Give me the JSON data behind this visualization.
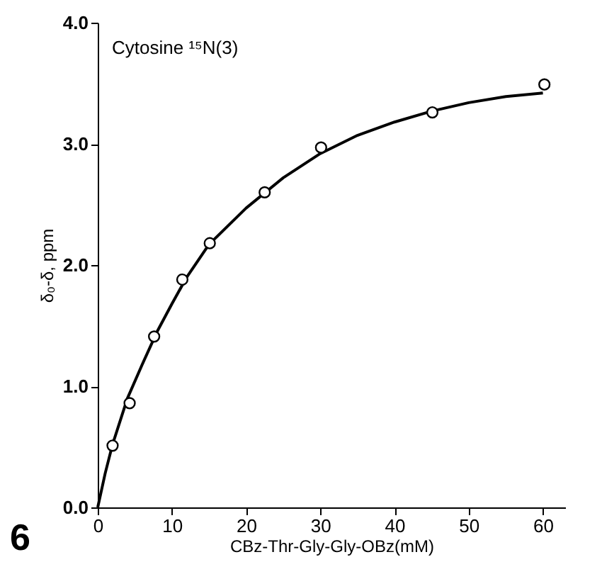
{
  "chart_data": {
    "type": "scatter",
    "xlabel": "CBz-Thr-Gly-Gly-OBz(mM)",
    "ylabel": "δ₀-δ, ppm",
    "annotations": [
      "Cytosine ¹⁵N(3)",
      "6"
    ],
    "xlim": [
      0,
      63
    ],
    "xticks": [
      0,
      10,
      20,
      30,
      40,
      50,
      60
    ],
    "ylim": [
      0,
      4.0
    ],
    "yticks": [
      {
        "value": 0,
        "label": "0.0"
      },
      {
        "value": 1,
        "label": "1.0"
      },
      {
        "value": 2,
        "label": "2.0"
      },
      {
        "value": 3,
        "label": "3.0"
      },
      {
        "value": 4,
        "label": "4.0"
      }
    ],
    "grid": false,
    "series": [
      {
        "type": "scatter",
        "color": "#000000",
        "marker": "circle",
        "x": [
          2.0,
          4.3,
          7.6,
          11.4,
          15.1,
          22.5,
          30.1,
          45.1,
          60.2
        ],
        "values": [
          0.51,
          0.86,
          1.41,
          1.88,
          2.18,
          2.6,
          2.97,
          3.26,
          3.49
        ]
      },
      {
        "type": "line",
        "color": "#000000",
        "line_style": "solid",
        "x": [
          0,
          1,
          2,
          4,
          6,
          8,
          10,
          12,
          15,
          20,
          25,
          30,
          35,
          40,
          45,
          50,
          55,
          60
        ],
        "values": [
          0,
          0.28,
          0.52,
          0.9,
          1.18,
          1.45,
          1.68,
          1.9,
          2.17,
          2.47,
          2.72,
          2.92,
          3.07,
          3.18,
          3.27,
          3.34,
          3.39,
          3.42
        ]
      }
    ]
  }
}
